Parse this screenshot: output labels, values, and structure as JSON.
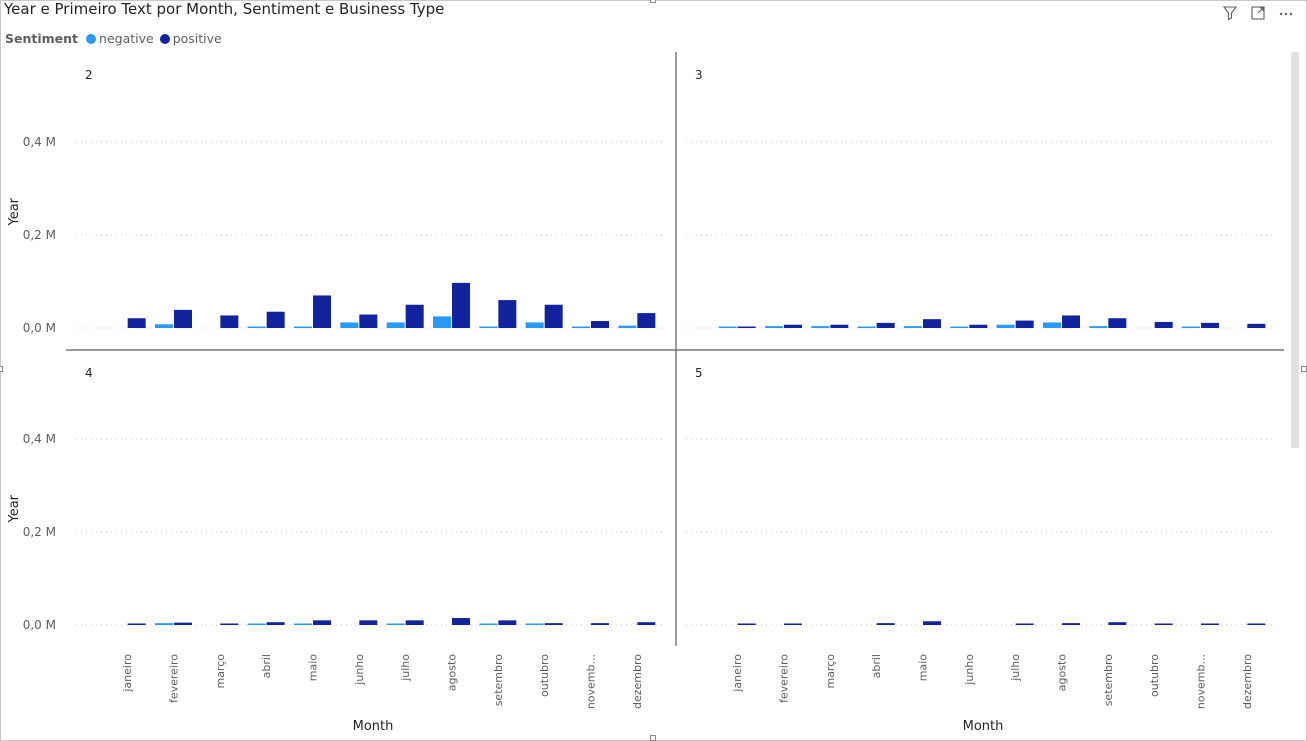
{
  "title": "Year e Primeiro Text por Month, Sentiment e Business Type",
  "header_icons": [
    "filter-icon",
    "focus-mode-icon",
    "more-options-icon"
  ],
  "legend": {
    "title": "Sentiment",
    "items": [
      {
        "label": "negative",
        "color": "#2899F5"
      },
      {
        "label": "positive",
        "color": "#12239E"
      }
    ]
  },
  "chart_data": {
    "type": "bar",
    "small_multiples_by": "Business Type",
    "xlabel": "Month",
    "ylabel": "Year",
    "ylim": [
      0,
      0.55
    ],
    "yticks": [
      0,
      0.2,
      0.4
    ],
    "ytick_labels": [
      "0,0 M",
      "0,2 M",
      "0,4 M"
    ],
    "categories": [
      "janeiro",
      "fevereiro",
      "março",
      "abril",
      "maio",
      "junho",
      "julho",
      "agosto",
      "setembro",
      "outubro",
      "novemb...",
      "dezembro"
    ],
    "grid": "horizontal dotted",
    "panels": [
      {
        "label": "2",
        "series": [
          {
            "name": "negative",
            "values": [
              0.0,
              0.008,
              0.0,
              0.002,
              0.003,
              0.012,
              0.012,
              0.025,
              0.003,
              0.012,
              0.002,
              0.005
            ]
          },
          {
            "name": "positive",
            "values": [
              0.021,
              0.039,
              0.027,
              0.035,
              0.07,
              0.029,
              0.05,
              0.097,
              0.06,
              0.05,
              0.015,
              0.032
            ]
          }
        ]
      },
      {
        "label": "3",
        "series": [
          {
            "name": "negative",
            "values": [
              0.002,
              0.004,
              0.004,
              0.002,
              0.004,
              0.002,
              0.007,
              0.012,
              0.004,
              0.0,
              0.003,
              0.0
            ]
          },
          {
            "name": "positive",
            "values": [
              0.003,
              0.007,
              0.007,
              0.011,
              0.019,
              0.007,
              0.016,
              0.027,
              0.021,
              0.013,
              0.011,
              0.009
            ]
          }
        ]
      },
      {
        "label": "4",
        "series": [
          {
            "name": "negative",
            "values": [
              0.0,
              0.004,
              0.0,
              0.002,
              0.002,
              0.0,
              0.002,
              0.0,
              0.002,
              0.002,
              0.0,
              0.0
            ]
          },
          {
            "name": "positive",
            "values": [
              0.002,
              0.005,
              0.002,
              0.006,
              0.01,
              0.01,
              0.01,
              0.015,
              0.01,
              0.004,
              0.004,
              0.006
            ]
          }
        ]
      },
      {
        "label": "5",
        "series": [
          {
            "name": "negative",
            "values": [
              0.0,
              0.0,
              0.0,
              0.0,
              0.0,
              0.0,
              0.0,
              0.0,
              0.0,
              0.0,
              0.0,
              0.0
            ]
          },
          {
            "name": "positive",
            "values": [
              0.002,
              0.002,
              0.0,
              0.004,
              0.008,
              0.0,
              0.002,
              0.004,
              0.006,
              0.002,
              0.002,
              0.002
            ]
          }
        ]
      }
    ]
  }
}
